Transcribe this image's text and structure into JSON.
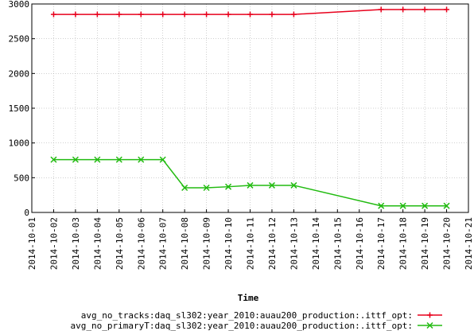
{
  "chart_data": {
    "type": "line",
    "title": "",
    "xlabel": "Time",
    "ylabel": "",
    "ylim": [
      0,
      3000
    ],
    "yticks": [
      "0",
      "500",
      "1000",
      "1500",
      "2000",
      "2500",
      "3000"
    ],
    "yticks_values": [
      0,
      500,
      1000,
      1500,
      2000,
      2500,
      3000
    ],
    "categories": [
      "2014-10-01",
      "2014-10-02",
      "2014-10-03",
      "2014-10-04",
      "2014-10-05",
      "2014-10-06",
      "2014-10-07",
      "2014-10-08",
      "2014-10-09",
      "2014-10-10",
      "2014-10-11",
      "2014-10-12",
      "2014-10-13",
      "2014-10-14",
      "2014-10-15",
      "2014-10-16",
      "2014-10-17",
      "2014-10-18",
      "2014-10-19",
      "2014-10-20",
      "2014-10-21"
    ],
    "grid": true,
    "legend_position": "bottom-right",
    "series": [
      {
        "name": "avg_no_tracks:daq_sl302:year_2010:auau200_production:.ittf_opt:",
        "color": "#e8001c",
        "marker": "plus",
        "x": [
          "2014-10-02",
          "2014-10-03",
          "2014-10-04",
          "2014-10-05",
          "2014-10-06",
          "2014-10-07",
          "2014-10-08",
          "2014-10-09",
          "2014-10-10",
          "2014-10-11",
          "2014-10-12",
          "2014-10-13",
          "2014-10-17",
          "2014-10-18",
          "2014-10-19",
          "2014-10-20"
        ],
        "values": [
          2850,
          2850,
          2850,
          2850,
          2850,
          2850,
          2850,
          2850,
          2850,
          2850,
          2850,
          2850,
          2920,
          2920,
          2920,
          2920
        ]
      },
      {
        "name": "avg_no_primaryT:daq_sl302:year_2010:auau200_production:.ittf_opt:",
        "color": "#22bb11",
        "marker": "x",
        "x": [
          "2014-10-02",
          "2014-10-03",
          "2014-10-04",
          "2014-10-05",
          "2014-10-06",
          "2014-10-07",
          "2014-10-08",
          "2014-10-09",
          "2014-10-10",
          "2014-10-11",
          "2014-10-12",
          "2014-10-13",
          "2014-10-17",
          "2014-10-18",
          "2014-10-19",
          "2014-10-20"
        ],
        "values": [
          760,
          760,
          760,
          760,
          760,
          760,
          355,
          355,
          370,
          390,
          390,
          390,
          95,
          95,
          95,
          95
        ]
      }
    ]
  }
}
